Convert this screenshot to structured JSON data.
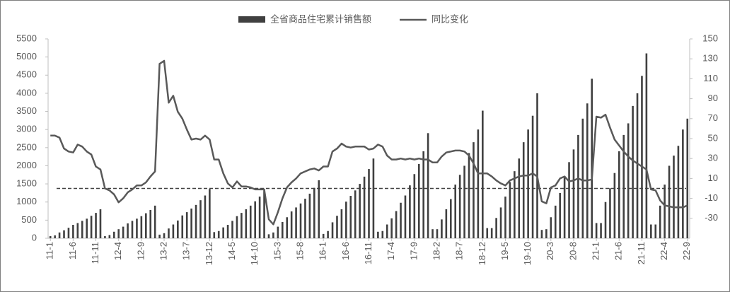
{
  "chart_data": {
    "type": "bar_line",
    "categories": [
      "11-1",
      null,
      null,
      null,
      null,
      "11-6",
      null,
      null,
      null,
      null,
      "11-11",
      null,
      null,
      null,
      null,
      "12-4",
      null,
      null,
      null,
      null,
      "12-9",
      null,
      null,
      null,
      null,
      "13-2",
      null,
      null,
      null,
      null,
      "13-7",
      null,
      null,
      null,
      null,
      "13-12",
      null,
      null,
      null,
      null,
      "14-5",
      null,
      null,
      null,
      null,
      "14-10",
      null,
      null,
      null,
      null,
      "15-3",
      null,
      null,
      null,
      null,
      "15-8",
      null,
      null,
      null,
      null,
      "16-1",
      null,
      null,
      null,
      null,
      "16-6",
      null,
      null,
      null,
      null,
      "16-11",
      null,
      null,
      null,
      null,
      "17-4",
      null,
      null,
      null,
      null,
      "17-9",
      null,
      null,
      null,
      null,
      "18-2",
      null,
      null,
      null,
      null,
      "18-7",
      null,
      null,
      null,
      null,
      "18-12",
      null,
      null,
      null,
      null,
      "19-5",
      null,
      null,
      null,
      null,
      "19-10",
      null,
      null,
      null,
      null,
      "20-3",
      null,
      null,
      null,
      null,
      "20-8",
      null,
      null,
      null,
      null,
      "21-1",
      null,
      null,
      null,
      null,
      "21-6",
      null,
      null,
      null,
      null,
      "21-11",
      null,
      null,
      null,
      null,
      "22-4",
      null,
      null,
      null,
      null,
      "22-9"
    ],
    "series": [
      {
        "name": "全省商品住宅累计销售额",
        "type": "bar",
        "color": "#404040",
        "axis": "y",
        "values": [
          60,
          80,
          160,
          220,
          290,
          370,
          420,
          480,
          540,
          620,
          700,
          800,
          60,
          90,
          180,
          250,
          320,
          410,
          480,
          540,
          610,
          690,
          780,
          900,
          100,
          140,
          270,
          380,
          490,
          630,
          720,
          820,
          920,
          1050,
          1180,
          1360,
          170,
          200,
          300,
          370,
          480,
          610,
          700,
          800,
          900,
          1020,
          1150,
          1330,
          110,
          160,
          320,
          450,
          580,
          740,
          850,
          960,
          1090,
          1230,
          1390,
          1600,
          120,
          200,
          440,
          620,
          800,
          1010,
          1170,
          1320,
          1500,
          1700,
          1910,
          2200,
          180,
          200,
          380,
          550,
          750,
          980,
          1180,
          1460,
          1770,
          2050,
          2400,
          2900,
          250,
          250,
          520,
          800,
          1080,
          1480,
          1750,
          2000,
          2350,
          2650,
          3000,
          3520,
          280,
          280,
          560,
          850,
          1150,
          1550,
          1850,
          2200,
          2650,
          3000,
          3380,
          4000,
          230,
          250,
          580,
          900,
          1250,
          1700,
          2100,
          2450,
          2850,
          3300,
          3720,
          4400,
          420,
          420,
          1000,
          1380,
          1800,
          2400,
          2850,
          3170,
          3650,
          4000,
          4480,
          5100,
          380,
          380,
          900,
          1480,
          2000,
          2280,
          2550,
          3000,
          3300
        ]
      },
      {
        "name": "同比变化",
        "type": "line",
        "color": "#595959",
        "axis": "y2",
        "values": [
          53,
          53,
          51,
          40,
          37,
          36,
          44,
          42,
          37,
          34,
          22,
          19,
          0,
          -2,
          -6,
          -14,
          -10,
          -4,
          -1,
          3,
          3,
          6,
          12,
          17,
          125,
          128,
          86,
          93,
          77,
          70,
          59,
          49,
          50,
          49,
          53,
          49,
          29,
          29,
          15,
          5,
          1,
          7,
          2,
          2,
          1,
          -1,
          -1,
          -1,
          -31,
          -36,
          -24,
          -10,
          1,
          6,
          10,
          15,
          17,
          19,
          20,
          18,
          22,
          22,
          37,
          40,
          45,
          42,
          41,
          42,
          42,
          42,
          39,
          40,
          44,
          42,
          33,
          29,
          29,
          30,
          29,
          30,
          29,
          30,
          29,
          29,
          26,
          26,
          32,
          36,
          37,
          38,
          38,
          37,
          33,
          25,
          15,
          15,
          15,
          12,
          8,
          5,
          3,
          8,
          10,
          12,
          13,
          13,
          15,
          12,
          -13,
          -15,
          1,
          3,
          10,
          12,
          7,
          8,
          10,
          8,
          8,
          9,
          72,
          71,
          74,
          61,
          49,
          43,
          37,
          32,
          28,
          25,
          22,
          19,
          -1,
          -2,
          -12,
          -17,
          -18,
          -19,
          -19,
          -19,
          -17
        ]
      }
    ],
    "ylim": [
      0,
      5500
    ],
    "yticks": [
      0,
      500,
      1000,
      1500,
      2000,
      2500,
      3000,
      3500,
      4000,
      4500,
      5000,
      5500
    ],
    "y2lim": [
      -50,
      150
    ],
    "y2ticks": [
      -30,
      -10,
      10,
      30,
      50,
      70,
      90,
      110,
      130,
      150
    ],
    "reference_line": {
      "axis": "y2",
      "value": 0,
      "color": "#404040",
      "dashed": true
    },
    "grid": false,
    "legend": "top"
  }
}
